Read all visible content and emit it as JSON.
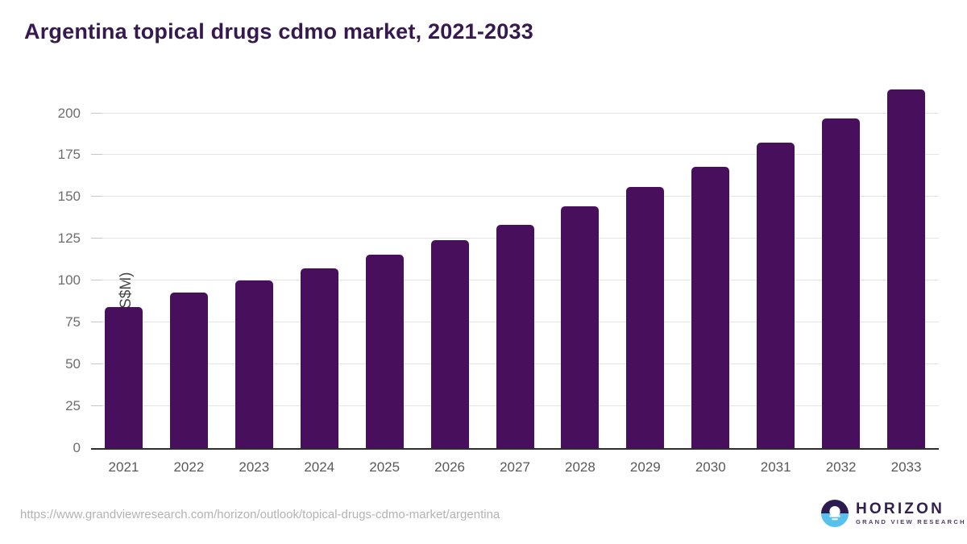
{
  "page": {
    "title": "Argentina topical drugs cdmo market, 2021-2033"
  },
  "chart_data": {
    "type": "bar",
    "title": "Argentina topical drugs cdmo market, 2021-2033",
    "categories": [
      "2021",
      "2022",
      "2023",
      "2024",
      "2025",
      "2026",
      "2027",
      "2028",
      "2029",
      "2030",
      "2031",
      "2032",
      "2033"
    ],
    "values": [
      84.4,
      93.1,
      100.2,
      107.6,
      115.7,
      124.2,
      133.4,
      144.4,
      155.8,
      168.2,
      182.4,
      197.1,
      214.0
    ],
    "xlabel": "",
    "ylabel": "Market Size (US$M)",
    "ylim": [
      0,
      220
    ],
    "yticks": [
      0,
      25,
      50,
      75,
      100,
      125,
      150,
      175,
      200
    ],
    "grid": true,
    "legend": false,
    "bar_color": "#48105c"
  },
  "footer": {
    "source_url": "https://www.grandviewresearch.com/horizon/outlook/topical-drugs-cdmo-market/argentina",
    "logo": {
      "brand": "HORIZON",
      "subbrand": "GRAND VIEW RESEARCH"
    }
  },
  "colors": {
    "bar": "#48105c",
    "title": "#36194e",
    "axis_title": "#464646",
    "axis_line": "#2e2e2e",
    "gridline": "#e4e4e4",
    "gridtick": "#c6c6c6",
    "tick_label": "#6e6e6e",
    "x_label": "#58595b",
    "url_text": "#b3b3b3",
    "logo_dark": "#2b1b4e",
    "logo_blue": "#57c1ee",
    "logo_text": "#32204e",
    "logo_subtext": "#4c3a72"
  }
}
